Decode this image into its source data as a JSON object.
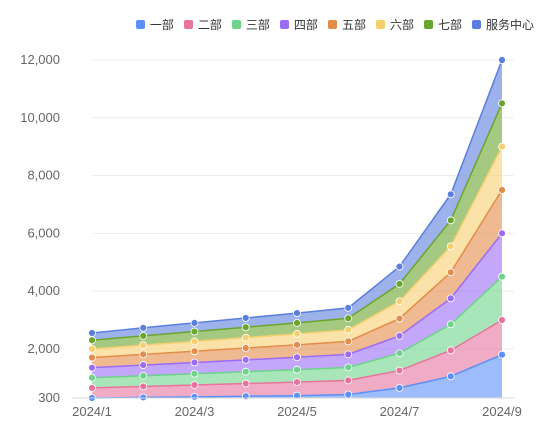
{
  "chart_data": {
    "type": "area",
    "stacked": true,
    "x": [
      "2024/1",
      "2024/2",
      "2024/3",
      "2024/4",
      "2024/5",
      "2024/6",
      "2024/7",
      "2024/8",
      "2024/9"
    ],
    "x_tick_labels": [
      "2024/1",
      "2024/3",
      "2024/5",
      "2024/7",
      "2024/9"
    ],
    "y_tick_labels": [
      "300",
      "2,000",
      "4,000",
      "6,000",
      "8,000",
      "10,000",
      "12,000"
    ],
    "ylim": [
      300,
      12000
    ],
    "grid": true,
    "legend_position": "top-right",
    "series": [
      {
        "name": "一部",
        "color": "#5b8ff9",
        "values": [
          300,
          320,
          340,
          360,
          380,
          420,
          650,
          1050,
          1800
        ]
      },
      {
        "name": "二部",
        "color": "#e8749e",
        "values": [
          350,
          380,
          410,
          440,
          470,
          490,
          600,
          900,
          1200
        ]
      },
      {
        "name": "三部",
        "color": "#6ed38a",
        "values": [
          350,
          370,
          390,
          410,
          430,
          450,
          600,
          900,
          1500
        ]
      },
      {
        "name": "四部",
        "color": "#9b6cf6",
        "values": [
          350,
          370,
          390,
          410,
          430,
          450,
          600,
          900,
          1500
        ]
      },
      {
        "name": "五部",
        "color": "#e48c4a",
        "values": [
          350,
          370,
          390,
          410,
          430,
          450,
          600,
          900,
          1500
        ]
      },
      {
        "name": "六部",
        "color": "#f6cf6e",
        "values": [
          300,
          320,
          340,
          360,
          380,
          400,
          600,
          900,
          1500
        ]
      },
      {
        "name": "七部",
        "color": "#6aa52e",
        "values": [
          300,
          320,
          340,
          360,
          380,
          400,
          600,
          900,
          1500
        ]
      },
      {
        "name": "服务中心",
        "color": "#5b7fde",
        "values": [
          250,
          280,
          300,
          320,
          340,
          360,
          600,
          900,
          1500
        ]
      }
    ]
  }
}
